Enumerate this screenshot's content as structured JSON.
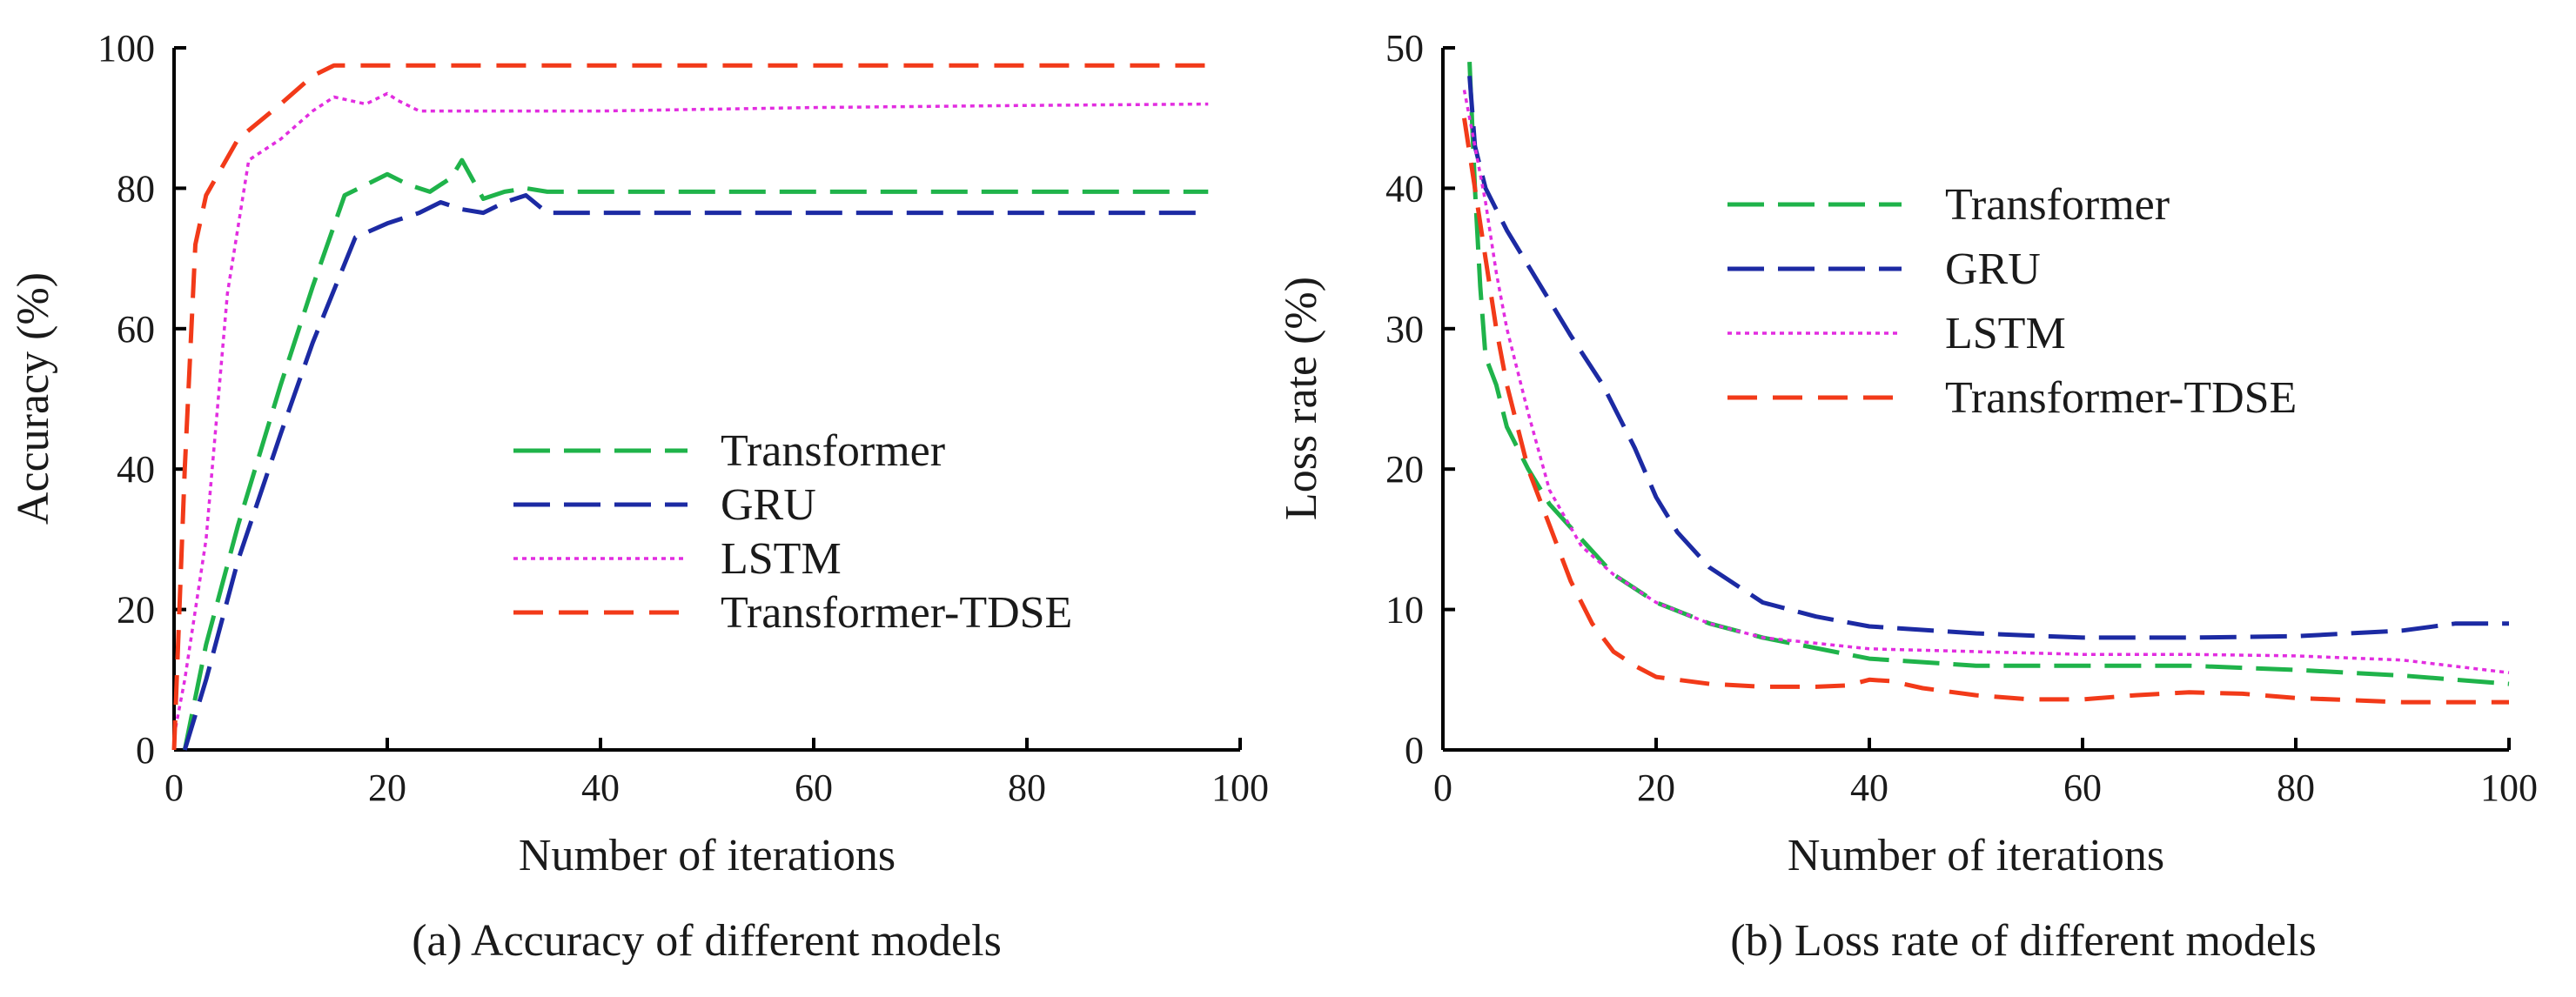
{
  "chart_data": [
    {
      "type": "line",
      "xlabel": "Number of iterations",
      "ylabel": "Accuracy (%)",
      "caption": "(a) Accuracy of different models",
      "xlim": [
        0,
        100
      ],
      "ylim": [
        0,
        100
      ],
      "x_ticks": [
        "0",
        "20",
        "40",
        "60",
        "80",
        "100"
      ],
      "y_ticks": [
        "0",
        "20",
        "40",
        "60",
        "80",
        "100"
      ],
      "legend_position": "bottom-right",
      "series": [
        {
          "name": "Transformer",
          "color": "#1fb34a",
          "dash": "long-dash",
          "x": [
            1,
            3,
            6,
            10,
            13,
            16,
            18,
            20,
            22,
            24,
            26,
            27,
            29,
            31,
            33,
            35,
            40,
            60,
            80,
            97
          ],
          "y": [
            0,
            15,
            32,
            52,
            66,
            79,
            80.5,
            82,
            80.5,
            79.5,
            81.5,
            84,
            78.5,
            79.5,
            80,
            79.5,
            79.5,
            79.5,
            79.5,
            79.5
          ]
        },
        {
          "name": "GRU",
          "color": "#1c2aa3",
          "dash": "long-dash",
          "x": [
            1,
            3,
            6,
            10,
            13,
            17,
            20,
            23,
            25,
            27,
            29,
            31,
            33,
            35,
            40,
            60,
            80,
            97
          ],
          "y": [
            0,
            10,
            27,
            45,
            58,
            73,
            75,
            76.5,
            78,
            77,
            76.5,
            78,
            79,
            76.5,
            76.5,
            76.5,
            76.5,
            76.5
          ]
        },
        {
          "name": "LSTM",
          "color": "#e22de0",
          "dash": "dotted",
          "x": [
            0,
            1,
            3,
            5,
            7,
            10,
            13,
            15,
            18,
            20,
            21,
            23,
            27,
            40,
            60,
            80,
            97
          ],
          "y": [
            2,
            10,
            30,
            65,
            84,
            87,
            91,
            93,
            92,
            93.5,
            92.5,
            91,
            91,
            91,
            91.5,
            91.8,
            92
          ]
        },
        {
          "name": "Transformer-TDSE",
          "color": "#f23a19",
          "dash": "dashed",
          "x": [
            0,
            1,
            2,
            3,
            6,
            10,
            13,
            15,
            20,
            40,
            60,
            80,
            97
          ],
          "y": [
            0,
            40,
            72,
            79,
            87,
            92,
            96,
            97.5,
            97.5,
            97.5,
            97.5,
            97.5,
            97.5
          ]
        }
      ]
    },
    {
      "type": "line",
      "xlabel": "Number of iterations",
      "ylabel": "Loss rate (%)",
      "caption": "(b) Loss rate of different models",
      "xlim": [
        0,
        100
      ],
      "ylim": [
        0,
        50
      ],
      "x_ticks": [
        "0",
        "20",
        "40",
        "60",
        "80",
        "100"
      ],
      "y_ticks": [
        "0",
        "10",
        "20",
        "30",
        "40",
        "50"
      ],
      "legend_position": "top-right",
      "series": [
        {
          "name": "Transformer",
          "color": "#1fb34a",
          "dash": "long-dash",
          "x": [
            2.5,
            3,
            3.5,
            4,
            5,
            6,
            7,
            8,
            10,
            13,
            16,
            20,
            25,
            30,
            40,
            50,
            60,
            70,
            80,
            90,
            100
          ],
          "y": [
            49,
            40,
            33,
            28,
            26,
            23,
            21.5,
            20,
            17.5,
            15,
            12.5,
            10.5,
            9,
            8,
            6.5,
            6,
            6,
            6,
            5.7,
            5.3,
            4.7
          ]
        },
        {
          "name": "GRU",
          "color": "#1c2aa3",
          "dash": "long-dash",
          "x": [
            2.5,
            3,
            4,
            6,
            8,
            10,
            12,
            15,
            18,
            20,
            22,
            25,
            30,
            35,
            40,
            50,
            60,
            70,
            80,
            90,
            95,
            100
          ],
          "y": [
            48,
            43,
            40,
            37,
            34.5,
            32,
            29.5,
            26,
            21.5,
            18,
            15.5,
            13,
            10.5,
            9.5,
            8.8,
            8.3,
            8,
            8,
            8.1,
            8.5,
            9,
            9
          ]
        },
        {
          "name": "LSTM",
          "color": "#e22de0",
          "dash": "dotted",
          "x": [
            2,
            3,
            4,
            5,
            6,
            8,
            10,
            13,
            16,
            20,
            25,
            30,
            40,
            50,
            60,
            70,
            80,
            90,
            100
          ],
          "y": [
            47,
            43,
            39,
            34,
            30,
            24,
            18.5,
            14.5,
            12.5,
            10.5,
            9,
            8,
            7.2,
            7,
            6.8,
            6.8,
            6.7,
            6.4,
            5.5
          ]
        },
        {
          "name": "Transformer-TDSE",
          "color": "#f23a19",
          "dash": "dashed",
          "x": [
            2,
            3,
            4,
            5,
            6,
            8,
            10,
            12,
            14,
            16,
            18,
            20,
            25,
            30,
            35,
            38,
            40,
            42,
            45,
            50,
            55,
            60,
            65,
            70,
            75,
            80,
            90,
            100
          ],
          "y": [
            45,
            40,
            35,
            30,
            26,
            20,
            16,
            12,
            9,
            7,
            6,
            5.2,
            4.7,
            4.5,
            4.5,
            4.6,
            5,
            4.9,
            4.4,
            3.9,
            3.6,
            3.6,
            3.9,
            4.1,
            4,
            3.7,
            3.4,
            3.4
          ]
        }
      ]
    }
  ]
}
